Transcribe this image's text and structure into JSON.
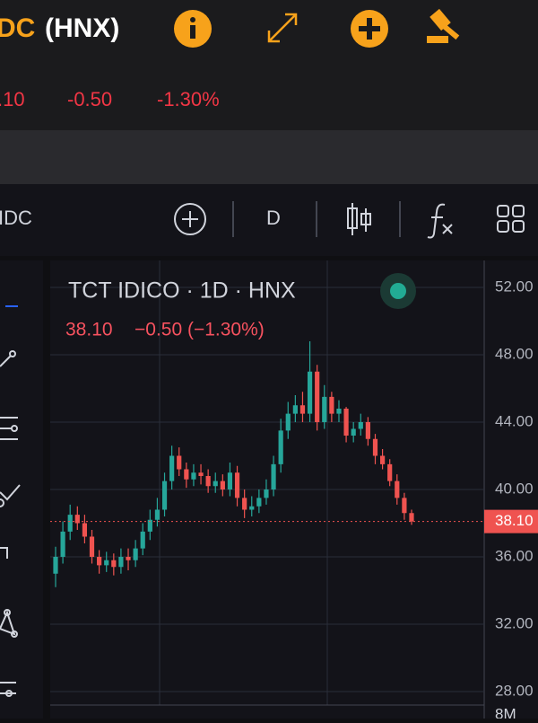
{
  "header": {
    "symbol": "DC",
    "exchange": "(HNX)",
    "price": ".10",
    "change": "-0.50",
    "change_percent": "-1.30%"
  },
  "toolbar": {
    "symbol": "IDC",
    "interval": "D"
  },
  "chart_data": {
    "type": "candlestick",
    "title": "TCT IDICO · 1D · HNX",
    "legend_price": "38.10",
    "legend_change": "−0.50 (−1.30%)",
    "last_price": {
      "value": 38.1,
      "label": "38.10"
    },
    "volume_label": "8M",
    "up_color": "#26a69a",
    "down_color": "#ef5350",
    "grid": true,
    "ylim": [
      27.2,
      53.6
    ],
    "yticks": [
      {
        "value": 52,
        "label": "52.00"
      },
      {
        "value": 48,
        "label": "48.00"
      },
      {
        "value": 44,
        "label": "44.00"
      },
      {
        "value": 40,
        "label": "40.00"
      },
      {
        "value": 36,
        "label": "36.00"
      },
      {
        "value": 32,
        "label": "32.00"
      },
      {
        "value": 28,
        "label": "28.00"
      }
    ],
    "open": [
      35.0,
      36.0,
      37.5,
      38.5,
      38.0,
      37.2,
      36.0,
      35.5,
      35.8,
      35.4,
      36.0,
      35.8,
      36.5,
      37.5,
      38.2,
      38.8,
      40.5,
      42.0,
      41.2,
      40.6,
      41.0,
      40.8,
      40.2,
      40.5,
      40.0,
      41.0,
      39.5,
      38.8,
      39.0,
      39.5,
      40.0,
      41.5,
      43.5,
      44.5,
      45.0,
      44.5,
      47.0,
      44.0,
      45.5,
      44.5,
      44.8,
      43.2,
      43.6,
      44.0,
      43.0,
      42.0,
      41.5,
      40.5,
      39.5,
      38.6
    ],
    "high": [
      36.6,
      38.1,
      39.1,
      39.0,
      38.5,
      37.6,
      36.4,
      36.3,
      36.2,
      36.5,
      36.5,
      37.0,
      38.0,
      38.8,
      39.5,
      41.0,
      42.6,
      42.5,
      41.6,
      41.5,
      41.5,
      41.2,
      41.0,
      40.9,
      41.6,
      41.4,
      40.0,
      39.6,
      40.0,
      40.6,
      42.0,
      44.2,
      45.2,
      45.6,
      45.8,
      48.8,
      47.4,
      46.2,
      45.8,
      45.3,
      44.9,
      44.0,
      44.5,
      44.3,
      43.3,
      42.4,
      41.8,
      40.9,
      39.8,
      38.8
    ],
    "low": [
      34.2,
      35.6,
      37.0,
      37.6,
      36.8,
      35.6,
      35.0,
      35.1,
      34.9,
      35.0,
      35.2,
      35.4,
      36.1,
      37.0,
      37.8,
      38.4,
      40.0,
      40.8,
      40.1,
      40.2,
      40.3,
      39.8,
      39.8,
      39.6,
      39.6,
      39.0,
      38.3,
      38.4,
      38.6,
      39.1,
      39.6,
      41.0,
      43.0,
      44.0,
      44.0,
      44.0,
      43.5,
      43.6,
      44.0,
      44.0,
      42.8,
      42.8,
      43.2,
      42.6,
      41.5,
      41.2,
      40.2,
      39.1,
      38.2,
      37.9
    ],
    "close": [
      36.0,
      37.5,
      38.5,
      38.0,
      37.2,
      36.0,
      35.5,
      35.8,
      35.4,
      36.0,
      35.8,
      36.5,
      37.5,
      38.2,
      38.8,
      40.5,
      42.0,
      41.2,
      40.6,
      41.0,
      40.8,
      40.2,
      40.5,
      40.0,
      41.0,
      39.5,
      38.8,
      39.0,
      39.5,
      40.0,
      41.5,
      43.5,
      44.5,
      45.0,
      44.5,
      47.0,
      44.0,
      45.5,
      44.5,
      44.8,
      43.2,
      43.6,
      44.0,
      43.0,
      42.0,
      41.5,
      40.5,
      39.5,
      38.6,
      38.1
    ]
  }
}
